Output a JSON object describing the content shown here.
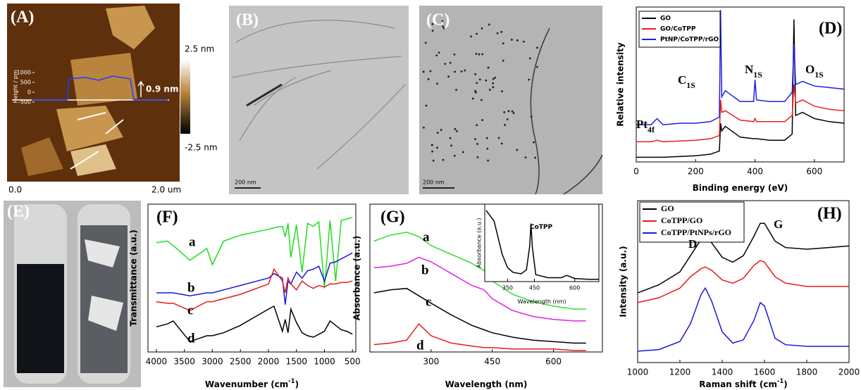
{
  "images": [
    {
      "label": "(A)",
      "colorbar_max": "2.5 nm",
      "colorbar_min": "-2.5 nm",
      "x_start": "0.0",
      "x_end": "2.0 um",
      "profile_y_label": "Height / pm",
      "profile_yticks": [
        1000,
        500,
        0,
        -500
      ],
      "step": "0.9 nm"
    },
    {
      "label": "(B)",
      "scale_bar": "200 nm"
    },
    {
      "label": "(C)",
      "scale_bar": "200 nm"
    },
    {
      "label": "(E)"
    }
  ],
  "chart_data": [
    {
      "type": "line",
      "panel_label": "(D)",
      "x_label": "Binding energy (eV)",
      "y_label": "Relative intensity",
      "xlim": [
        0,
        700
      ],
      "xticks": [
        0,
        200,
        400,
        600
      ],
      "ylim": [
        0,
        10
      ],
      "legend": "upper left",
      "x": [
        0,
        50,
        70,
        90,
        150,
        200,
        250,
        280,
        284,
        288,
        300,
        350,
        395,
        400,
        405,
        450,
        500,
        525,
        531,
        537,
        560,
        600,
        650,
        700
      ],
      "series": [
        {
          "name": "GO",
          "color": "#000000",
          "values": [
            0.3,
            0.3,
            0.3,
            0.3,
            0.35,
            0.4,
            0.5,
            0.7,
            2.5,
            2.0,
            2.3,
            1.6,
            1.5,
            1.5,
            1.5,
            1.4,
            1.4,
            1.8,
            9.2,
            3.0,
            3.2,
            2.8,
            2.6,
            2.5
          ]
        },
        {
          "name": "GO/CoTPP",
          "color": "#e8201c",
          "values": [
            1.3,
            1.3,
            1.4,
            1.3,
            1.35,
            1.4,
            1.5,
            1.7,
            4.0,
            3.2,
            3.3,
            2.7,
            2.6,
            2.8,
            2.6,
            2.6,
            2.6,
            3.0,
            5.0,
            3.8,
            4.0,
            3.6,
            3.4,
            3.3
          ]
        },
        {
          "name": "PtNP/CoTPP/rGO",
          "color": "#1f1fe0",
          "values": [
            2.4,
            2.4,
            2.8,
            2.4,
            2.5,
            2.5,
            2.6,
            2.9,
            9.8,
            4.2,
            4.6,
            3.9,
            3.9,
            5.3,
            4.0,
            3.9,
            3.9,
            4.5,
            7.6,
            5.0,
            5.2,
            4.9,
            4.8,
            4.7
          ]
        }
      ],
      "annotations": [
        {
          "text": "Pt",
          "sub": "4f"
        },
        {
          "text": "C",
          "sub": "1S"
        },
        {
          "text": "N",
          "sub": "1S"
        },
        {
          "text": "O",
          "sub": "1S"
        }
      ]
    },
    {
      "type": "line",
      "panel_label": "(F)",
      "x_label": "Wavenumber (cm",
      "x_label_sup": "-1",
      "x_label_end": ")",
      "y_label": "Transmittance (a.u.)",
      "xlim": [
        4150,
        440
      ],
      "xticks": [
        4000,
        3500,
        3000,
        2500,
        2000,
        1500,
        1000,
        500
      ],
      "ylim": [
        0,
        10
      ],
      "x": [
        4000,
        3800,
        3700,
        3400,
        3100,
        3000,
        2800,
        2500,
        2000,
        1900,
        1750,
        1700,
        1650,
        1600,
        1500,
        1400,
        1300,
        1200,
        1100,
        1000,
        900,
        800,
        700,
        600,
        500
      ],
      "series": [
        {
          "name": "a",
          "color": "#22dd22",
          "values": [
            7.4,
            7.5,
            7.2,
            6.2,
            7.0,
            5.9,
            7.5,
            7.9,
            8.3,
            8.4,
            8.5,
            7.8,
            8.7,
            6.4,
            8.6,
            5.4,
            8.7,
            8.5,
            8.8,
            4.3,
            8.9,
            4.8,
            8.9,
            9.0,
            9.1
          ]
        },
        {
          "name": "b",
          "color": "#1a1ad8",
          "values": [
            4.0,
            4.0,
            4.0,
            3.8,
            4.0,
            4.0,
            4.2,
            4.5,
            5.0,
            5.3,
            5.0,
            3.2,
            4.8,
            4.6,
            5.4,
            5.0,
            5.5,
            5.6,
            5.8,
            4.8,
            6.0,
            6.1,
            6.3,
            6.5,
            6.7
          ]
        },
        {
          "name": "c",
          "color": "#e81a1a",
          "values": [
            3.4,
            3.3,
            3.3,
            2.8,
            3.4,
            3.4,
            3.6,
            3.9,
            4.6,
            5.6,
            4.8,
            4.0,
            5.0,
            4.6,
            4.2,
            4.8,
            4.5,
            4.3,
            4.5,
            4.4,
            4.6,
            4.6,
            4.7,
            4.7,
            4.8
          ]
        },
        {
          "name": "d",
          "color": "#000000",
          "values": [
            1.7,
            1.9,
            2.1,
            0.7,
            1.1,
            1.1,
            1.3,
            1.8,
            2.9,
            3.1,
            1.4,
            2.2,
            1.3,
            2.9,
            2.0,
            1.3,
            1.1,
            1.0,
            1.2,
            1.4,
            2.1,
            1.8,
            1.5,
            1.4,
            1.2
          ]
        }
      ]
    },
    {
      "type": "line",
      "panel_label": "(G)",
      "x_label": "Wavelength (nm)",
      "y_label": "Absorbance (a.u.)",
      "xlim": [
        150,
        720
      ],
      "xticks": [
        300,
        450,
        600
      ],
      "ylim": [
        0,
        10
      ],
      "x": [
        160,
        200,
        240,
        270,
        300,
        350,
        400,
        430,
        450,
        500,
        550,
        600,
        650,
        680
      ],
      "series": [
        {
          "name": "a",
          "color": "#33dd33",
          "values": [
            7.5,
            7.9,
            8.1,
            7.8,
            7.2,
            6.6,
            6.0,
            5.5,
            4.8,
            3.9,
            3.4,
            3.1,
            2.9,
            2.9
          ]
        },
        {
          "name": "b",
          "color": "#e61ee6",
          "values": [
            5.7,
            5.8,
            6.0,
            6.4,
            6.1,
            5.3,
            4.5,
            4.2,
            3.6,
            2.8,
            2.4,
            2.2,
            2.1,
            2.1
          ]
        },
        {
          "name": "c",
          "color": "#000000",
          "values": [
            4.0,
            4.2,
            4.3,
            3.8,
            3.3,
            2.5,
            1.8,
            1.5,
            1.3,
            1.0,
            0.8,
            0.7,
            0.6,
            0.6
          ]
        },
        {
          "name": "d",
          "color": "#e81a1a",
          "values": [
            0.5,
            0.6,
            0.8,
            1.9,
            1.1,
            0.6,
            0.4,
            0.3,
            0.3,
            0.2,
            0.2,
            0.2,
            0.1,
            0.1
          ]
        }
      ]
    },
    {
      "type": "line",
      "x_label": "Wavelength (nm)",
      "y_label": "Absorbance (a.u.)",
      "xlim": [
        265,
        690
      ],
      "xticks": [
        350,
        450,
        600
      ],
      "ylim": [
        0,
        10
      ],
      "x": [
        270,
        300,
        330,
        350,
        370,
        400,
        420,
        432,
        437,
        442,
        455,
        500,
        550,
        570,
        600,
        650,
        690
      ],
      "series": [
        {
          "color": "#000000",
          "values": [
            9.2,
            7.8,
            3.5,
            1.8,
            1.2,
            1.0,
            1.5,
            4.5,
            7.5,
            4.5,
            0.9,
            0.5,
            0.5,
            0.8,
            0.4,
            0.3,
            0.3
          ]
        }
      ],
      "annotations": [
        {
          "text": "CoTPP"
        }
      ]
    },
    {
      "type": "line",
      "panel_label": "(H)",
      "x_label": "Raman shift (cm",
      "x_label_sup": "-1",
      "x_label_end": ")",
      "y_label": "Intensity (a.u.)",
      "xlim": [
        1000,
        2000
      ],
      "xticks": [
        1000,
        1200,
        1400,
        1600,
        1800,
        2000
      ],
      "ylim": [
        0,
        10
      ],
      "legend": "upper left",
      "x": [
        1000,
        1100,
        1200,
        1250,
        1300,
        1320,
        1350,
        1400,
        1450,
        1500,
        1550,
        1580,
        1600,
        1650,
        1700,
        1800,
        1900,
        2000
      ],
      "series": [
        {
          "name": "GO",
          "color": "#000000",
          "values": [
            4.3,
            4.8,
            5.6,
            6.6,
            7.6,
            7.8,
            7.4,
            6.5,
            6.2,
            6.6,
            7.8,
            8.6,
            8.6,
            7.5,
            7.1,
            7.0,
            7.1,
            7.2
          ]
        },
        {
          "name": "CoTPP/GO",
          "color": "#e81a1a",
          "values": [
            3.7,
            4.0,
            4.6,
            5.3,
            5.8,
            5.9,
            5.7,
            5.1,
            4.9,
            5.2,
            6.0,
            6.3,
            6.2,
            5.3,
            4.9,
            4.7,
            4.7,
            4.7
          ]
        },
        {
          "name": "CoTPP/PtNPs/rGO",
          "color": "#1a1ad8",
          "values": [
            0.7,
            0.8,
            1.3,
            2.4,
            4.2,
            4.6,
            3.8,
            1.9,
            1.2,
            1.4,
            2.6,
            3.7,
            3.5,
            1.5,
            1.1,
            1.0,
            1.0,
            1.0
          ]
        }
      ],
      "annotations": [
        {
          "text": "D"
        },
        {
          "text": "G"
        }
      ]
    }
  ]
}
